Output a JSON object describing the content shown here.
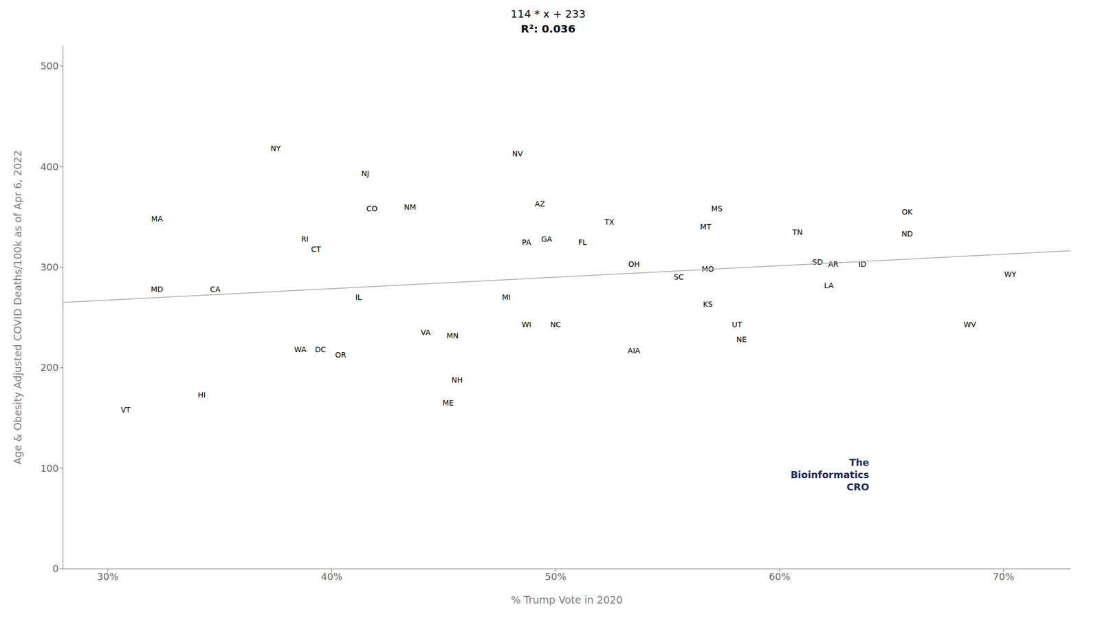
{
  "chart_data": {
    "type": "scatter",
    "title": "114 * x + 233",
    "subtitle": "R²: 0.036",
    "xlabel": "% Trump Vote in 2020",
    "ylabel": "Age & Obesity Adjusted COVID Deaths/100k as of Apr 6, 2022",
    "xlim": [
      0.28,
      0.73
    ],
    "ylim": [
      0,
      520
    ],
    "xticks": [
      {
        "value": 0.3,
        "label": "30%"
      },
      {
        "value": 0.4,
        "label": "40%"
      },
      {
        "value": 0.5,
        "label": "50%"
      },
      {
        "value": 0.6,
        "label": "60%"
      },
      {
        "value": 0.7,
        "label": "70%"
      }
    ],
    "yticks": [
      0,
      100,
      200,
      300,
      400,
      500
    ],
    "grid": false,
    "annotations": [
      {
        "text": "The\nBioinformatics\nCRO",
        "color": "#1a2a5e"
      }
    ],
    "series": [
      {
        "type": "scatter",
        "color": "#000000",
        "x": [
          0.308,
          0.342,
          0.322,
          0.322,
          0.348,
          0.375,
          0.388,
          0.393,
          0.386,
          0.395,
          0.404,
          0.412,
          0.415,
          0.418,
          0.435,
          0.442,
          0.454,
          0.456,
          0.452,
          0.483,
          0.493,
          0.487,
          0.496,
          0.478,
          0.487,
          0.5,
          0.512,
          0.524,
          0.535,
          0.535,
          0.555,
          0.568,
          0.567,
          0.572,
          0.568,
          0.581,
          0.583,
          0.608,
          0.617,
          0.624,
          0.622,
          0.637,
          0.657,
          0.657,
          0.685,
          0.703
        ],
        "values": [
          158,
          173,
          348,
          278,
          278,
          418,
          328,
          318,
          218,
          218,
          213,
          270,
          393,
          358,
          360,
          235,
          232,
          188,
          165,
          413,
          363,
          325,
          328,
          270,
          243,
          243,
          325,
          345,
          303,
          217,
          290,
          298,
          340,
          358,
          263,
          243,
          228,
          335,
          305,
          303,
          282,
          303,
          333,
          355,
          243,
          293
        ],
        "labels": [
          "VT",
          "HI",
          "MA",
          "MD",
          "CA",
          "NY",
          "RI",
          "CT",
          "WA",
          "DC",
          "OR",
          "IL",
          "NJ",
          "CO",
          "NM",
          "VA",
          "MN",
          "NH",
          "ME",
          "NV",
          "AZ",
          "PA",
          "GA",
          "MI",
          "WI",
          "NC",
          "FL",
          "TX",
          "OH",
          "AIA",
          "SC",
          "MO",
          "MT",
          "MS",
          "KS",
          "UT",
          "NE",
          "TN",
          "SD",
          "AR",
          "LA",
          "ID",
          "ND",
          "OK",
          "WV",
          "WY"
        ]
      },
      {
        "type": "line",
        "color": "#aaaaaa",
        "x": [
          0.28,
          0.73
        ],
        "values": [
          264.92,
          316.22
        ]
      }
    ]
  }
}
